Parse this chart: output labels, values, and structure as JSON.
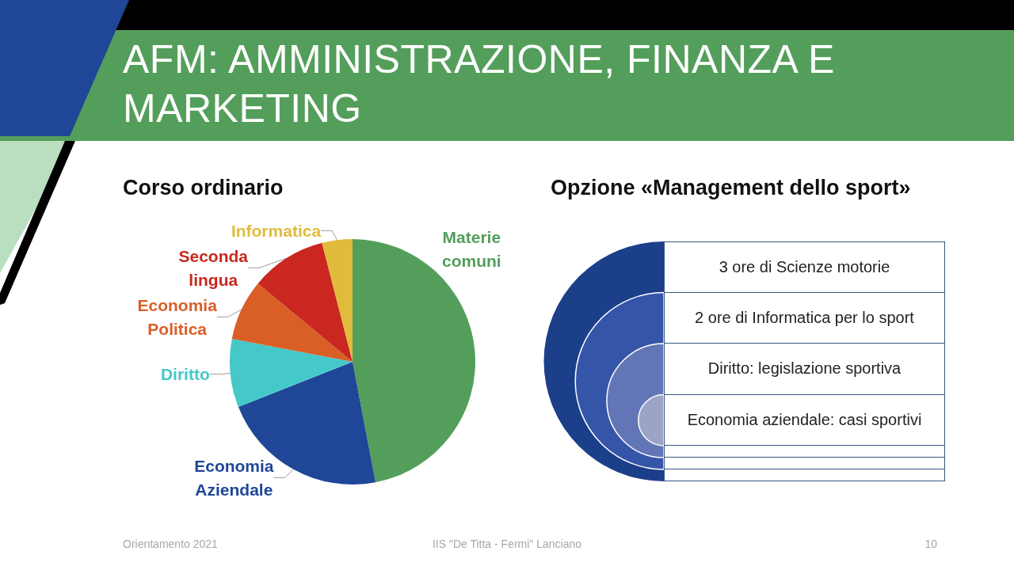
{
  "chart_data": [
    {
      "type": "pie",
      "title": "Corso ordinario",
      "categories": [
        "Materie comuni",
        "Economia Aziendale",
        "Diritto",
        "Economia Politica",
        "Seconda lingua",
        "Informatica"
      ],
      "values": [
        47,
        22,
        9,
        8,
        10,
        4
      ],
      "colors": [
        "#549e5b",
        "#1f4697",
        "#45c8c8",
        "#d95f27",
        "#c9271f",
        "#e0bb3c"
      ],
      "legend": false,
      "annotations": [
        "AFM: AMMINISTRAZIONE, FINANZA E MARKETING",
        "Orientamento 2021",
        "IIS \"De Titta - Fermi\" Lanciano",
        "10"
      ]
    },
    {
      "type": "other",
      "title": "Opzione «Management dello sport»",
      "annotations": [
        "3 ore di Scienze motorie",
        "2 ore di Informatica per lo sport",
        "Diritto: legislazione sportiva",
        "Economia aziendale: casi sportivi"
      ]
    }
  ]
}
